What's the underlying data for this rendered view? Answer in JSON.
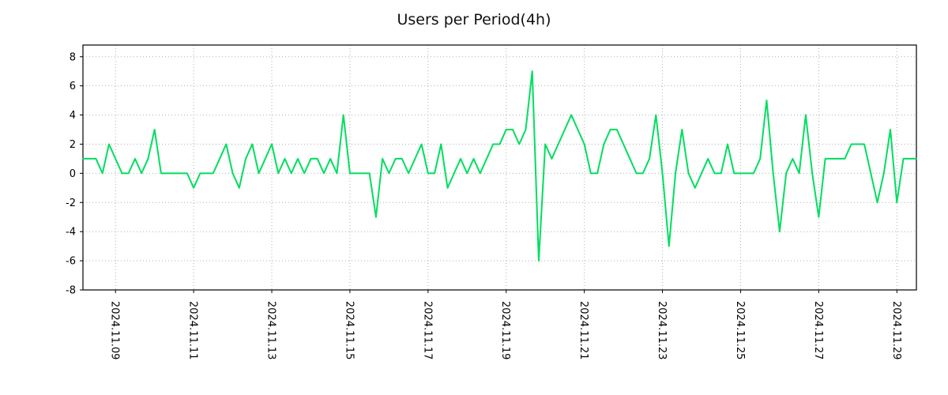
{
  "title": "Users per Period(4h)",
  "style": {
    "line_color": "#00de5f",
    "grid_color": "#b0b0b0",
    "border_color": "#000000",
    "text_color": "#000000",
    "background": "#ffffff"
  },
  "chart_data": {
    "type": "line",
    "title": "Users per Period(4h)",
    "xlabel": "",
    "ylabel": "",
    "ylim": [
      -8,
      8.8
    ],
    "y_ticks": [
      8,
      6,
      4,
      2,
      0,
      -2,
      -4,
      -6,
      -8
    ],
    "y_tick_labels": [
      "8",
      "6",
      "4",
      "2",
      "0",
      "-2",
      "-4",
      "-6",
      "-8"
    ],
    "x_tick_indices": [
      5,
      17,
      29,
      41,
      53,
      65,
      77,
      89,
      101,
      113,
      125
    ],
    "x_tick_labels": [
      "2024.11.09",
      "2024.11.11",
      "2024.11.13",
      "2024.11.15",
      "2024.11.17",
      "2024.11.19",
      "2024.11.21",
      "2024.11.23",
      "2024.11.25",
      "2024.11.27",
      "2024.11.29"
    ],
    "grid": true,
    "legend": false,
    "series": [
      {
        "name": "users",
        "color": "#00de5f",
        "values": [
          1,
          1,
          1,
          0,
          2,
          1,
          0,
          0,
          1,
          0,
          1,
          3,
          0,
          0,
          0,
          0,
          0,
          -1,
          0,
          0,
          0,
          1,
          2,
          0,
          -1,
          1,
          2,
          0,
          1,
          2,
          0,
          1,
          0,
          1,
          0,
          1,
          1,
          0,
          1,
          0,
          4,
          0,
          0,
          0,
          0,
          -3,
          1,
          0,
          1,
          1,
          0,
          1,
          2,
          0,
          0,
          2,
          -1,
          0,
          1,
          0,
          1,
          0,
          1,
          2,
          2,
          3,
          3,
          2,
          3,
          7,
          -6,
          2,
          1,
          2,
          3,
          4,
          3,
          2,
          0,
          0,
          2,
          3,
          3,
          2,
          1,
          0,
          0,
          1,
          4,
          0,
          -5,
          0,
          3,
          0,
          -1,
          0,
          1,
          0,
          0,
          2,
          0,
          0,
          0,
          0,
          1,
          5,
          0,
          -4,
          0,
          1,
          0,
          4,
          0,
          -3,
          1,
          1,
          1,
          1,
          2,
          2,
          2,
          0,
          -2,
          0,
          3,
          -2,
          1,
          1,
          1
        ]
      }
    ]
  }
}
